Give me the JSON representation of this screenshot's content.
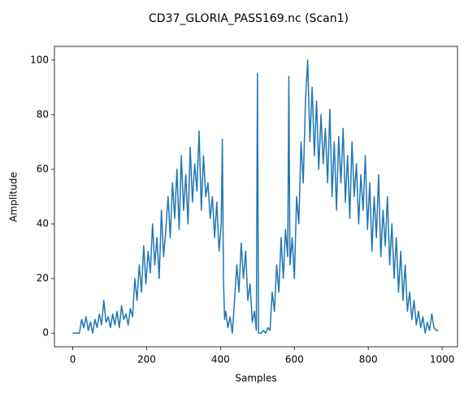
{
  "chart_data": {
    "type": "line",
    "title": "CD37_GLORIA_PASS169.nc (Scan1)",
    "xlabel": "Samples",
    "ylabel": "Amplitude",
    "x": [
      0,
      6,
      12,
      18,
      24,
      30,
      36,
      42,
      48,
      54,
      60,
      66,
      72,
      78,
      84,
      90,
      96,
      102,
      108,
      114,
      120,
      126,
      132,
      138,
      144,
      150,
      156,
      162,
      168,
      174,
      180,
      186,
      192,
      198,
      204,
      210,
      216,
      222,
      228,
      234,
      240,
      246,
      252,
      258,
      264,
      270,
      276,
      282,
      288,
      294,
      300,
      306,
      312,
      318,
      324,
      330,
      336,
      342,
      348,
      354,
      360,
      366,
      372,
      378,
      384,
      390,
      396,
      402,
      405,
      408,
      411,
      414,
      420,
      426,
      432,
      438,
      444,
      450,
      456,
      462,
      468,
      474,
      480,
      486,
      492,
      497,
      500,
      503,
      510,
      516,
      522,
      528,
      534,
      540,
      546,
      552,
      558,
      564,
      570,
      576,
      582,
      585,
      588,
      594,
      600,
      606,
      612,
      618,
      624,
      630,
      636,
      642,
      648,
      654,
      660,
      666,
      672,
      678,
      684,
      690,
      696,
      702,
      708,
      714,
      720,
      726,
      732,
      738,
      744,
      750,
      756,
      762,
      768,
      774,
      780,
      786,
      792,
      798,
      804,
      810,
      816,
      822,
      828,
      834,
      840,
      846,
      852,
      858,
      864,
      870,
      876,
      882,
      888,
      894,
      900,
      906,
      912,
      918,
      924,
      930,
      936,
      942,
      948,
      954,
      960,
      966,
      972,
      978,
      984,
      990
    ],
    "series": [
      {
        "name": "Scan1",
        "color": "#1f77b4",
        "values": [
          0,
          0,
          0,
          0,
          5,
          2,
          6,
          1,
          4,
          0,
          5,
          2,
          7,
          3,
          12,
          4,
          6,
          2,
          7,
          3,
          8,
          2,
          10,
          5,
          7,
          3,
          9,
          6,
          20,
          12,
          25,
          15,
          32,
          18,
          30,
          22,
          40,
          25,
          35,
          20,
          45,
          28,
          38,
          50,
          35,
          55,
          42,
          60,
          38,
          65,
          45,
          58,
          40,
          68,
          48,
          62,
          52,
          74,
          45,
          65,
          50,
          55,
          42,
          50,
          35,
          48,
          30,
          40,
          71,
          20,
          5,
          8,
          2,
          6,
          0,
          12,
          25,
          15,
          33,
          20,
          30,
          12,
          18,
          4,
          8,
          1,
          95,
          0,
          0,
          1,
          0,
          2,
          1,
          15,
          8,
          25,
          15,
          35,
          20,
          38,
          28,
          94,
          25,
          35,
          20,
          50,
          40,
          70,
          55,
          85,
          100,
          70,
          90,
          65,
          85,
          60,
          80,
          62,
          75,
          55,
          82,
          50,
          70,
          45,
          72,
          55,
          75,
          48,
          65,
          42,
          70,
          50,
          62,
          40,
          58,
          45,
          65,
          38,
          55,
          30,
          50,
          35,
          58,
          28,
          45,
          32,
          50,
          25,
          40,
          20,
          35,
          15,
          30,
          12,
          25,
          8,
          15,
          5,
          12,
          3,
          8,
          2,
          6,
          0,
          4,
          1,
          7,
          2,
          1,
          1
        ]
      }
    ],
    "xlim": [
      -49.6,
      1041.6
    ],
    "ylim": [
      -5,
      105
    ],
    "xticks": [
      0,
      200,
      400,
      600,
      800,
      1000
    ],
    "yticks": [
      0,
      20,
      40,
      60,
      80,
      100
    ]
  }
}
